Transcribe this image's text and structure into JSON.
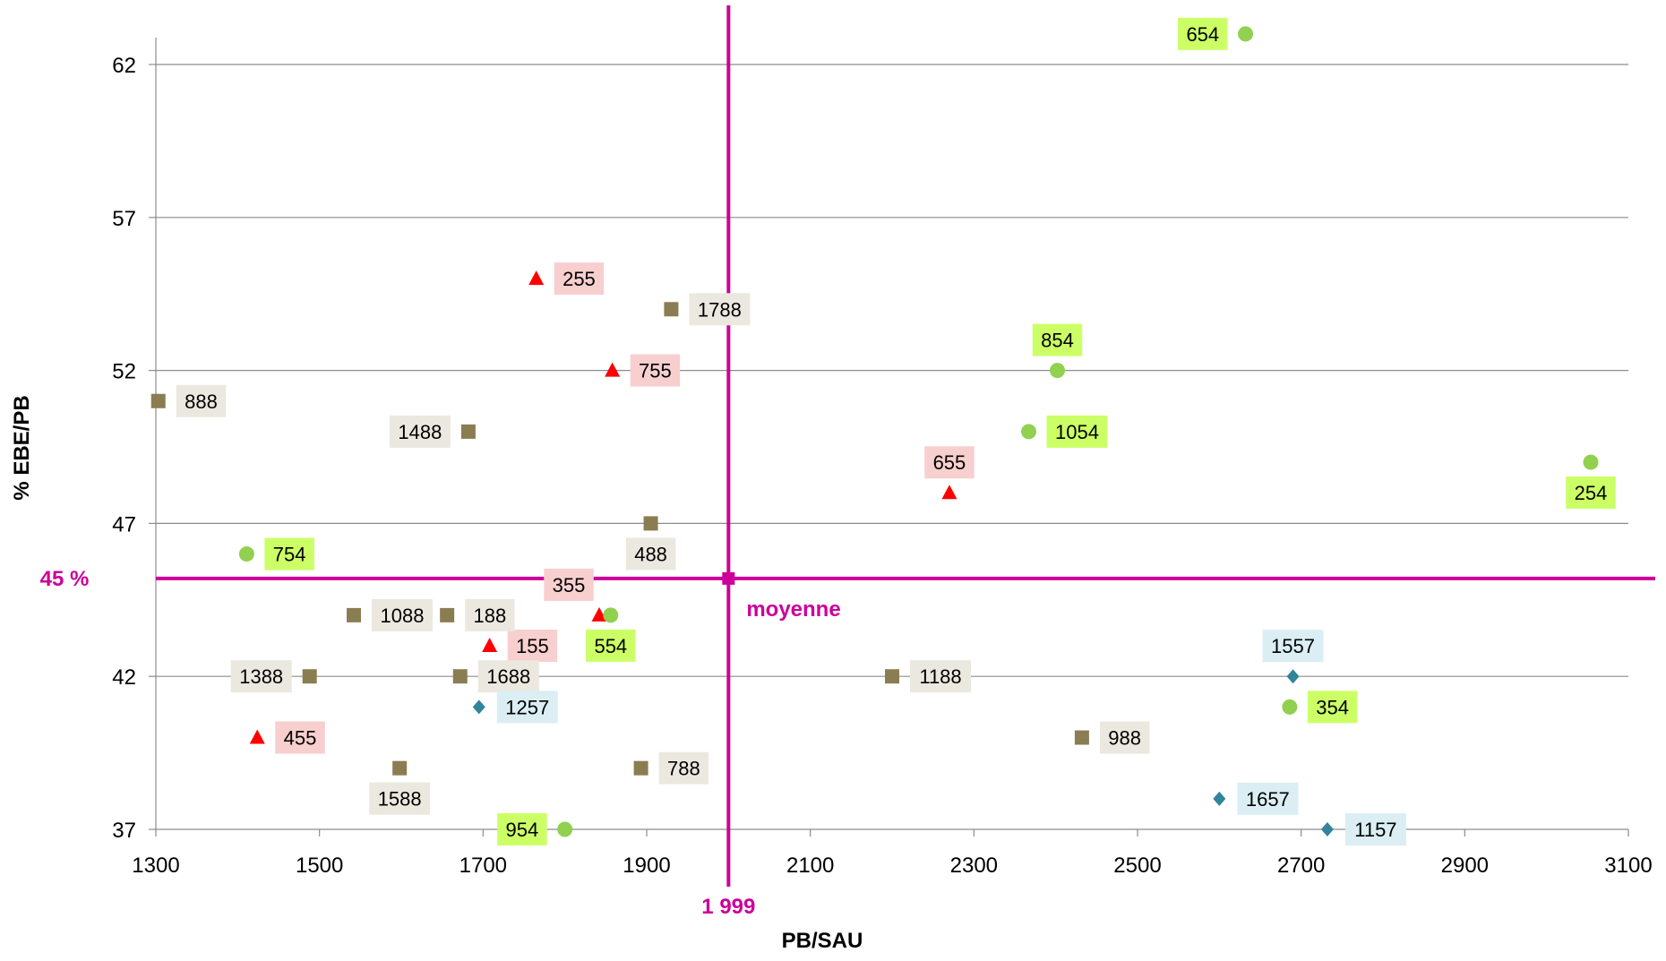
{
  "chart_data": {
    "type": "scatter",
    "xlabel": "PB/SAU",
    "ylabel": "% EBE/PB",
    "xlim": [
      1300,
      3100
    ],
    "ylim": [
      37,
      62
    ],
    "x_ticks": [
      1300,
      1500,
      1700,
      1900,
      2100,
      2300,
      2500,
      2700,
      2900,
      3100
    ],
    "y_ticks": [
      37,
      42,
      47,
      52,
      57,
      62
    ],
    "grid": "horizontal",
    "reference": {
      "x": 2000,
      "y": 45.2,
      "x_label": "1 999",
      "y_label": "45 %",
      "point_label": "moyenne",
      "color": "#cc0099"
    },
    "series": [
      {
        "marker": "triangle",
        "color": "#ff0000",
        "label_bg": "#f8cfcf",
        "points": [
          {
            "x": 1765,
            "y": 55,
            "label": "255"
          },
          {
            "x": 1858,
            "y": 52,
            "label": "755"
          },
          {
            "x": 2270,
            "y": 48,
            "label": "655"
          },
          {
            "x": 1842,
            "y": 44,
            "label": "355"
          },
          {
            "x": 1708,
            "y": 43,
            "label": "155"
          },
          {
            "x": 1424,
            "y": 40,
            "label": "455"
          }
        ]
      },
      {
        "marker": "square",
        "color": "#8b7d52",
        "label_bg": "#ebe8df",
        "points": [
          {
            "x": 1930,
            "y": 54,
            "label": "1788"
          },
          {
            "x": 1303,
            "y": 51,
            "label": "888"
          },
          {
            "x": 1682,
            "y": 50,
            "label": "1488"
          },
          {
            "x": 1905,
            "y": 47,
            "label": "488"
          },
          {
            "x": 1542,
            "y": 44,
            "label": "1088"
          },
          {
            "x": 1656,
            "y": 44,
            "label": "188"
          },
          {
            "x": 1488,
            "y": 42,
            "label": "1388"
          },
          {
            "x": 1672,
            "y": 42,
            "label": "1688"
          },
          {
            "x": 2200,
            "y": 42,
            "label": "1188"
          },
          {
            "x": 2432,
            "y": 40,
            "label": "988"
          },
          {
            "x": 1598,
            "y": 39,
            "label": "1588"
          },
          {
            "x": 1893,
            "y": 39,
            "label": "788"
          }
        ]
      },
      {
        "marker": "circle",
        "color": "#92d050",
        "label_bg": "#ccff66",
        "points": [
          {
            "x": 2632,
            "y": 63,
            "label": "654"
          },
          {
            "x": 2402,
            "y": 52,
            "label": "854"
          },
          {
            "x": 2367,
            "y": 50,
            "label": "1054"
          },
          {
            "x": 3054,
            "y": 49,
            "label": "254"
          },
          {
            "x": 1411,
            "y": 46,
            "label": "754"
          },
          {
            "x": 1856,
            "y": 44,
            "label": "554"
          },
          {
            "x": 2686,
            "y": 41,
            "label": "354"
          },
          {
            "x": 1800,
            "y": 37,
            "label": "954"
          }
        ]
      },
      {
        "marker": "diamond",
        "color": "#31849b",
        "label_bg": "#daeef3",
        "points": [
          {
            "x": 2690,
            "y": 42,
            "label": "1557"
          },
          {
            "x": 1695,
            "y": 41,
            "label": "1257"
          },
          {
            "x": 2600,
            "y": 38,
            "label": "1657"
          },
          {
            "x": 2732,
            "y": 37,
            "label": "1157"
          }
        ]
      }
    ]
  }
}
